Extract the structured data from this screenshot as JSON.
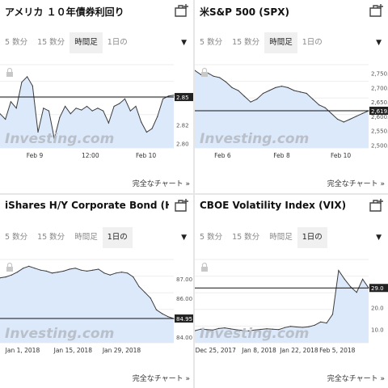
{
  "colors": {
    "line": "#3b3b3b",
    "fill": "#dce9fb",
    "ref_line": "#111111",
    "label_bg": "#222222",
    "watermark": "#b9c0c9"
  },
  "panels": [
    {
      "title": "アメリカ １０年債券利回り",
      "tabs": [
        "5 数分",
        "15 数分",
        "時間足",
        "1日の"
      ],
      "active_tab": 2,
      "full_chart_label": "完全なチャート »",
      "watermark": "Investing.com",
      "chart_data": {
        "type": "area",
        "y_ticks": [
          "2.85",
          "2.82",
          "2.80"
        ],
        "ylim": [
          2.795,
          2.885
        ],
        "x_labels": [
          {
            "label": "Feb 9",
            "pos": 0.2
          },
          {
            "label": "12:00",
            "pos": 0.52
          },
          {
            "label": "Feb 10",
            "pos": 0.84
          }
        ],
        "current_value": "2.85",
        "values": [
          2.832,
          2.826,
          2.845,
          2.838,
          2.866,
          2.872,
          2.862,
          2.812,
          2.838,
          2.835,
          2.805,
          2.828,
          2.84,
          2.832,
          2.838,
          2.836,
          2.84,
          2.835,
          2.838,
          2.835,
          2.822,
          2.84,
          2.843,
          2.848,
          2.835,
          2.84,
          2.823,
          2.812,
          2.816,
          2.829,
          2.848,
          2.851,
          2.852
        ]
      }
    },
    {
      "title": "米S&P 500 (SPX)",
      "tabs": [
        "5 数分",
        "15 数分",
        "時間足",
        "1日の"
      ],
      "active_tab": 2,
      "full_chart_label": "完全なチャート »",
      "watermark": "Investing.com",
      "chart_data": {
        "type": "area",
        "y_ticks": [
          "2,750.0",
          "2,700.0",
          "2,650.0",
          "2,600.0",
          "2,550.0",
          "2,500.0"
        ],
        "ylim": [
          2490,
          2780
        ],
        "x_labels": [
          {
            "label": "Feb 6",
            "pos": 0.16
          },
          {
            "label": "Feb 8",
            "pos": 0.5
          },
          {
            "label": "Feb 10",
            "pos": 0.84
          }
        ],
        "current_value": "2,619.5",
        "values": [
          2760,
          2745,
          2752,
          2740,
          2735,
          2720,
          2700,
          2690,
          2670,
          2650,
          2660,
          2680,
          2690,
          2700,
          2705,
          2700,
          2690,
          2685,
          2680,
          2660,
          2640,
          2630,
          2610,
          2590,
          2580,
          2590,
          2600,
          2610,
          2619.5
        ]
      }
    },
    {
      "title": "iShares H/Y Corporate Bond (H...",
      "tabs": [
        "5 数分",
        "15 数分",
        "時間足",
        "1日の"
      ],
      "active_tab": 3,
      "full_chart_label": "完全なチャート »",
      "watermark": "Investing.com",
      "chart_data": {
        "type": "area",
        "y_ticks": [
          "87.00",
          "86.00",
          "84.95",
          "84.00"
        ],
        "ylim": [
          83.7,
          88.0
        ],
        "x_labels": [
          {
            "label": "Jan 1, 2018",
            "pos": 0.13
          },
          {
            "label": "Jan 15, 2018",
            "pos": 0.42
          },
          {
            "label": "Jan 29, 2018",
            "pos": 0.7
          }
        ],
        "current_value": "84.95",
        "values": [
          87.05,
          87.1,
          87.2,
          87.35,
          87.55,
          87.65,
          87.55,
          87.45,
          87.4,
          87.3,
          87.35,
          87.4,
          87.5,
          87.55,
          87.45,
          87.4,
          87.45,
          87.5,
          87.3,
          87.2,
          87.3,
          87.35,
          87.3,
          87.1,
          86.6,
          86.3,
          86.0,
          85.4,
          85.2,
          85.05,
          84.95
        ]
      }
    },
    {
      "title": "CBOE Volatility Index (VIX)",
      "tabs": [
        "5 数分",
        "15 数分",
        "時間足",
        "1日の"
      ],
      "active_tab": 3,
      "full_chart_label": "完全なチャート »",
      "watermark": "Investing.com",
      "chart_data": {
        "type": "area",
        "y_ticks": [
          "29.0",
          "20.0",
          "10.0"
        ],
        "ylim": [
          4,
          42
        ],
        "x_labels": [
          {
            "label": "Dec 25, 2017",
            "pos": 0.12
          },
          {
            "label": "Jan 8, 2018",
            "pos": 0.37
          },
          {
            "label": "Jan 22, 2018",
            "pos": 0.6
          },
          {
            "label": "Feb 5, 2018",
            "pos": 0.82
          }
        ],
        "current_value": "29.0",
        "values": [
          9.5,
          10.2,
          10.0,
          9.8,
          10.5,
          10.8,
          10.3,
          9.9,
          9.6,
          9.4,
          9.8,
          10.1,
          10.4,
          10.2,
          10.0,
          10.9,
          11.5,
          11.2,
          11.0,
          11.3,
          12.0,
          13.5,
          13.0,
          17.0,
          37.0,
          33.0,
          29.5,
          27.0,
          33.0,
          29.0
        ]
      }
    }
  ]
}
